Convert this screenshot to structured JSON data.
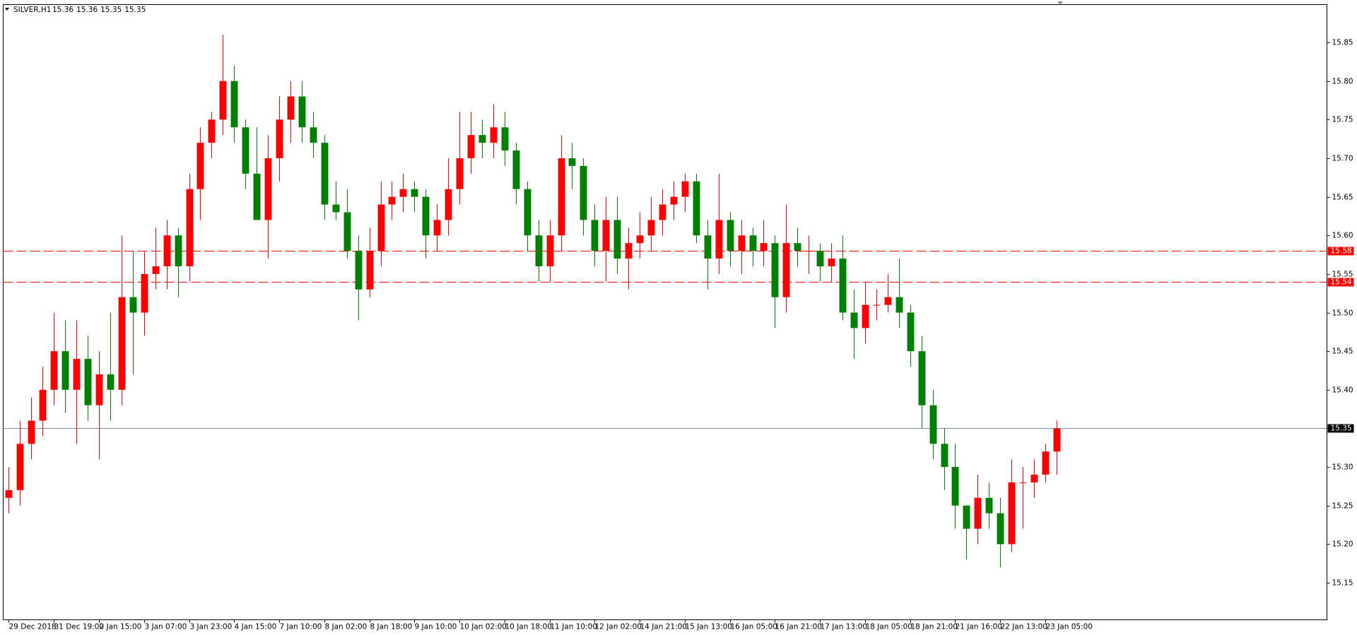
{
  "chart_data": {
    "type": "candlestick",
    "title": "SILVER,H1",
    "header_values": [
      15.36,
      15.36,
      15.35,
      15.35
    ],
    "up_color": "#ff0000",
    "down_color": "#008000",
    "open": [
      15.26,
      15.27,
      15.33,
      15.36,
      15.4,
      15.45,
      15.4,
      15.44,
      15.38,
      15.42,
      15.4,
      15.52,
      15.5,
      15.55,
      15.56,
      15.6,
      15.56,
      15.66,
      15.72,
      15.75,
      15.8,
      15.74,
      15.68,
      15.62,
      15.7,
      15.75,
      15.78,
      15.74,
      15.72,
      15.64,
      15.63,
      15.58,
      15.53,
      15.58,
      15.64,
      15.65,
      15.66,
      15.65,
      15.6,
      15.62,
      15.66,
      15.7,
      15.73,
      15.72,
      15.74,
      15.71,
      15.66,
      15.6,
      15.56,
      15.6,
      15.7,
      15.69,
      15.62,
      15.58,
      15.62,
      15.57,
      15.59,
      15.6,
      15.62,
      15.64,
      15.65,
      15.67,
      15.6,
      15.57,
      15.62,
      15.58,
      15.6,
      15.58,
      15.59,
      15.52,
      15.59,
      15.58,
      15.58,
      15.56,
      15.57,
      15.5,
      15.48,
      15.51,
      15.51,
      15.52,
      15.5,
      15.45,
      15.38,
      15.33,
      15.3,
      15.25,
      15.22,
      15.26,
      15.24,
      15.2,
      15.28,
      15.28,
      15.29,
      15.32
    ],
    "high": [
      15.3,
      15.36,
      15.39,
      15.43,
      15.5,
      15.49,
      15.49,
      15.47,
      15.45,
      15.5,
      15.6,
      15.58,
      15.58,
      15.61,
      15.62,
      15.61,
      15.68,
      15.74,
      15.76,
      15.86,
      15.82,
      15.75,
      15.74,
      15.73,
      15.78,
      15.8,
      15.8,
      15.76,
      15.73,
      15.67,
      15.66,
      15.6,
      15.61,
      15.67,
      15.67,
      15.68,
      15.67,
      15.66,
      15.64,
      15.7,
      15.76,
      15.76,
      15.75,
      15.77,
      15.76,
      15.72,
      15.67,
      15.62,
      15.62,
      15.73,
      15.72,
      15.7,
      15.64,
      15.65,
      15.65,
      15.61,
      15.63,
      15.65,
      15.66,
      15.67,
      15.68,
      15.68,
      15.62,
      15.68,
      15.63,
      15.62,
      15.61,
      15.62,
      15.6,
      15.64,
      15.61,
      15.6,
      15.59,
      15.59,
      15.6,
      15.53,
      15.54,
      15.53,
      15.55,
      15.57,
      15.51,
      15.47,
      15.4,
      15.35,
      15.33,
      15.25,
      15.29,
      15.28,
      15.26,
      15.31,
      15.3,
      15.31,
      15.33,
      15.36
    ],
    "low": [
      15.24,
      15.25,
      15.31,
      15.34,
      15.38,
      15.37,
      15.33,
      15.36,
      15.31,
      15.36,
      15.38,
      15.42,
      15.47,
      15.53,
      15.53,
      15.52,
      15.54,
      15.62,
      15.7,
      15.73,
      15.72,
      15.66,
      15.62,
      15.57,
      15.67,
      15.72,
      15.72,
      15.7,
      15.62,
      15.62,
      15.57,
      15.49,
      15.52,
      15.56,
      15.62,
      15.63,
      15.63,
      15.57,
      15.58,
      15.6,
      15.64,
      15.68,
      15.7,
      15.7,
      15.69,
      15.64,
      15.58,
      15.54,
      15.54,
      15.58,
      15.66,
      15.6,
      15.56,
      15.54,
      15.55,
      15.53,
      15.57,
      15.58,
      15.6,
      15.62,
      15.63,
      15.59,
      15.53,
      15.55,
      15.56,
      15.55,
      15.56,
      15.56,
      15.48,
      15.5,
      15.56,
      15.55,
      15.54,
      15.54,
      15.49,
      15.44,
      15.46,
      15.49,
      15.5,
      15.48,
      15.43,
      15.35,
      15.31,
      15.27,
      15.22,
      15.18,
      15.2,
      15.22,
      15.17,
      15.19,
      15.22,
      15.26,
      15.28,
      15.29
    ],
    "close": [
      15.27,
      15.33,
      15.36,
      15.4,
      15.45,
      15.4,
      15.44,
      15.38,
      15.42,
      15.4,
      15.52,
      15.5,
      15.55,
      15.56,
      15.6,
      15.56,
      15.66,
      15.72,
      15.75,
      15.8,
      15.74,
      15.68,
      15.62,
      15.7,
      15.75,
      15.78,
      15.74,
      15.72,
      15.64,
      15.63,
      15.58,
      15.53,
      15.58,
      15.64,
      15.65,
      15.66,
      15.65,
      15.6,
      15.62,
      15.66,
      15.7,
      15.73,
      15.72,
      15.74,
      15.71,
      15.66,
      15.6,
      15.56,
      15.6,
      15.7,
      15.69,
      15.62,
      15.58,
      15.62,
      15.57,
      15.59,
      15.6,
      15.62,
      15.64,
      15.65,
      15.67,
      15.6,
      15.57,
      15.62,
      15.58,
      15.6,
      15.58,
      15.59,
      15.52,
      15.59,
      15.58,
      15.58,
      15.56,
      15.57,
      15.5,
      15.48,
      15.51,
      15.51,
      15.52,
      15.5,
      15.45,
      15.38,
      15.33,
      15.3,
      15.25,
      15.22,
      15.26,
      15.24,
      15.2,
      15.28,
      15.28,
      15.29,
      15.32,
      15.35
    ],
    "xlim": [
      -0.5,
      117
    ],
    "xticks": [
      {
        "value": 0,
        "label": "29 Dec 2018"
      },
      {
        "value": 4,
        "label": "31 Dec 19:00"
      },
      {
        "value": 8,
        "label": "2 Jan 15:00"
      },
      {
        "value": 12,
        "label": "3 Jan 07:00"
      },
      {
        "value": 16,
        "label": "3 Jan 23:00"
      },
      {
        "value": 20,
        "label": "4 Jan 15:00"
      },
      {
        "value": 24,
        "label": "7 Jan 10:00"
      },
      {
        "value": 28,
        "label": "8 Jan 02:00"
      },
      {
        "value": 32,
        "label": "8 Jan 18:00"
      },
      {
        "value": 36,
        "label": "9 Jan 10:00"
      },
      {
        "value": 40,
        "label": "10 Jan 02:00"
      },
      {
        "value": 44,
        "label": "10 Jan 18:00"
      },
      {
        "value": 48,
        "label": "11 Jan 10:00"
      },
      {
        "value": 52,
        "label": "12 Jan 02:00"
      },
      {
        "value": 56,
        "label": "14 Jan 21:00"
      },
      {
        "value": 60,
        "label": "15 Jan 13:00"
      },
      {
        "value": 64,
        "label": "16 Jan 05:00"
      },
      {
        "value": 68,
        "label": "16 Jan 21:00"
      },
      {
        "value": 72,
        "label": "17 Jan 13:00"
      },
      {
        "value": 76,
        "label": "18 Jan 05:00"
      },
      {
        "value": 80,
        "label": "18 Jan 21:00"
      },
      {
        "value": 84,
        "label": "21 Jan 16:00"
      },
      {
        "value": 88,
        "label": "22 Jan 13:00"
      },
      {
        "value": 92,
        "label": "23 Jan 05:00"
      }
    ],
    "ylim": [
      15.102,
      15.899
    ],
    "yticks": [
      15.15,
      {
        "value": 15.2,
        "label": "15.20"
      },
      15.25,
      {
        "value": 15.3,
        "label": "15.30"
      },
      15.35,
      {
        "value": 15.4,
        "label": "15.40"
      },
      15.45,
      {
        "value": 15.5,
        "label": "15.50"
      },
      15.55,
      {
        "value": 15.6,
        "label": "15.60"
      },
      15.65,
      {
        "value": 15.7,
        "label": "15.70"
      },
      15.75,
      {
        "value": 15.8,
        "label": "15.80"
      },
      15.85
    ],
    "hlines": [
      {
        "value": 15.58,
        "color": "#ff0000",
        "dashed": true
      },
      {
        "value": 15.54,
        "color": "#ff0000",
        "dashed": true
      }
    ],
    "current_price": {
      "value": 15.35,
      "color": "#7f8fa8",
      "label_color": "#000000"
    }
  }
}
